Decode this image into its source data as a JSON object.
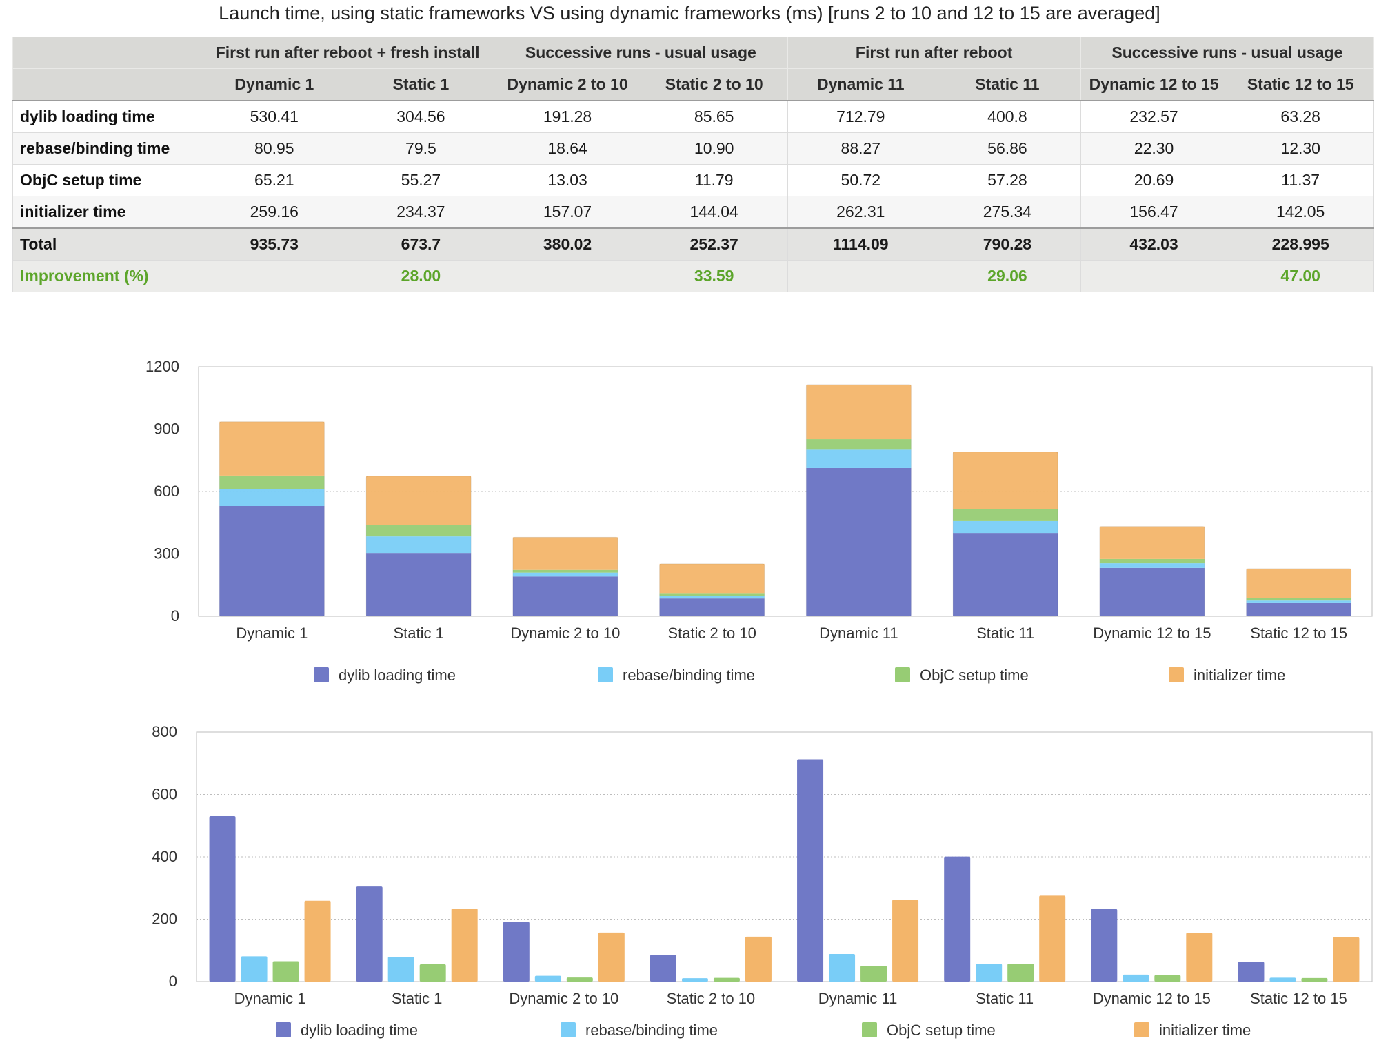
{
  "title": "Launch time, using static frameworks VS using dynamic frameworks (ms) [runs 2 to 10 and 12 to 15 are averaged]",
  "table": {
    "groups": [
      "First run after reboot + fresh install",
      "Successive runs - usual usage",
      "First run after reboot",
      "Successive runs - usual usage"
    ],
    "columns": [
      "Dynamic 1",
      "Static 1",
      "Dynamic 2 to 10",
      "Static 2 to 10",
      "Dynamic 11",
      "Static 11",
      "Dynamic 12 to 15",
      "Static 12 to 15"
    ],
    "rows": [
      {
        "label": "dylib loading time",
        "values": [
          "530.41",
          "304.56",
          "191.28",
          "85.65",
          "712.79",
          "400.8",
          "232.57",
          "63.28"
        ]
      },
      {
        "label": "rebase/binding time",
        "values": [
          "80.95",
          "79.5",
          "18.64",
          "10.90",
          "88.27",
          "56.86",
          "22.30",
          "12.30"
        ]
      },
      {
        "label": "ObjC setup time",
        "values": [
          "65.21",
          "55.27",
          "13.03",
          "11.79",
          "50.72",
          "57.28",
          "20.69",
          "11.37"
        ]
      },
      {
        "label": "initializer time",
        "values": [
          "259.16",
          "234.37",
          "157.07",
          "144.04",
          "262.31",
          "275.34",
          "156.47",
          "142.05"
        ]
      }
    ],
    "total": {
      "label": "Total",
      "values": [
        "935.73",
        "673.7",
        "380.02",
        "252.37",
        "1114.09",
        "790.28",
        "432.03",
        "228.995"
      ]
    },
    "improvement": {
      "label": "Improvement (%)",
      "values": [
        "",
        "28.00",
        "",
        "33.59",
        "",
        "29.06",
        "",
        "47.00"
      ]
    }
  },
  "colors": {
    "dylib": "#7079c6",
    "rebase": "#79cdf7",
    "objc": "#97cc74",
    "init": "#f3b56a",
    "improvement": "#5ca52a"
  },
  "chart_data": [
    {
      "type": "bar",
      "stacked": true,
      "categories": [
        "Dynamic 1",
        "Static 1",
        "Dynamic 2 to 10",
        "Static 2 to 10",
        "Dynamic 11",
        "Static 11",
        "Dynamic 12 to 15",
        "Static 12 to 15"
      ],
      "series": [
        {
          "name": "dylib loading time",
          "values": [
            530.41,
            304.56,
            191.28,
            85.65,
            712.79,
            400.8,
            232.57,
            63.28
          ]
        },
        {
          "name": "rebase/binding time",
          "values": [
            80.95,
            79.5,
            18.64,
            10.9,
            88.27,
            56.86,
            22.3,
            12.3
          ]
        },
        {
          "name": "ObjC setup time",
          "values": [
            65.21,
            55.27,
            13.03,
            11.79,
            50.72,
            57.28,
            20.69,
            11.37
          ]
        },
        {
          "name": "initializer time",
          "values": [
            259.16,
            234.37,
            157.07,
            144.04,
            262.31,
            275.34,
            156.47,
            142.05
          ]
        }
      ],
      "ylim": [
        0,
        1200
      ],
      "yticks": [
        0,
        300,
        600,
        900,
        1200
      ],
      "grid": true,
      "legend": "bottom"
    },
    {
      "type": "bar",
      "stacked": false,
      "categories": [
        "Dynamic 1",
        "Static 1",
        "Dynamic 2 to 10",
        "Static 2 to 10",
        "Dynamic 11",
        "Static 11",
        "Dynamic 12 to 15",
        "Static 12 to 15"
      ],
      "series": [
        {
          "name": "dylib loading time",
          "values": [
            530.41,
            304.56,
            191.28,
            85.65,
            712.79,
            400.8,
            232.57,
            63.28
          ]
        },
        {
          "name": "rebase/binding time",
          "values": [
            80.95,
            79.5,
            18.64,
            10.9,
            88.27,
            56.86,
            22.3,
            12.3
          ]
        },
        {
          "name": "ObjC setup time",
          "values": [
            65.21,
            55.27,
            13.03,
            11.79,
            50.72,
            57.28,
            20.69,
            11.37
          ]
        },
        {
          "name": "initializer time",
          "values": [
            259.16,
            234.37,
            157.07,
            144.04,
            262.31,
            275.34,
            156.47,
            142.05
          ]
        }
      ],
      "ylim": [
        0,
        800
      ],
      "yticks": [
        0,
        200,
        400,
        600,
        800
      ],
      "grid": true,
      "legend": "bottom"
    }
  ]
}
